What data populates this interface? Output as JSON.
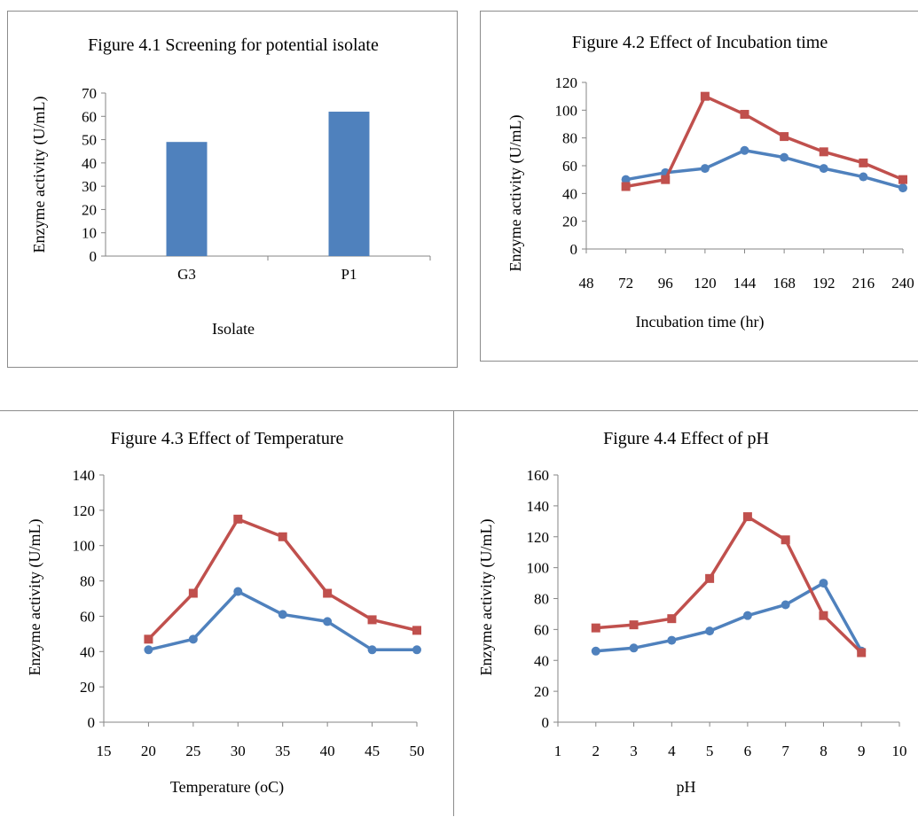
{
  "chart_data": [
    {
      "type": "bar",
      "title": "Figure 4.1 Screening for potential isolate",
      "xlabel": "Isolate",
      "ylabel": "Enzyme activity (U/mL)",
      "categories": [
        "G3",
        "P1"
      ],
      "values": [
        49,
        62
      ],
      "ylim": [
        0,
        70
      ],
      "yticks": [
        0,
        10,
        20,
        30,
        40,
        50,
        60,
        70
      ],
      "grid": false,
      "colors": {
        "bar": "#4f81bd"
      }
    },
    {
      "type": "line",
      "title": "Figure 4.2 Effect of Incubation time",
      "xlabel": "Incubation time (hr)",
      "ylabel": "Enzyme activity (U/mL)",
      "categories": [
        "48",
        "72",
        "96",
        "120",
        "144",
        "168",
        "192",
        "216",
        "240"
      ],
      "ylim": [
        0,
        120
      ],
      "yticks": [
        0,
        20,
        40,
        60,
        80,
        100,
        120
      ],
      "grid": false,
      "series": [
        {
          "color": "#4f81bd",
          "marker": "circle",
          "values": [
            null,
            50,
            55,
            58,
            71,
            66,
            58,
            52,
            44
          ]
        },
        {
          "color": "#c0504d",
          "marker": "square",
          "values": [
            null,
            45,
            50,
            110,
            97,
            81,
            70,
            62,
            50
          ]
        }
      ]
    },
    {
      "type": "line",
      "title": "Figure 4.3 Effect of Temperature",
      "xlabel": "Temperature (oC)",
      "ylabel": "Enzyme activity (U/mL)",
      "categories": [
        "15",
        "20",
        "25",
        "30",
        "35",
        "40",
        "45",
        "50"
      ],
      "ylim": [
        0,
        140
      ],
      "yticks": [
        0,
        20,
        40,
        60,
        80,
        100,
        120,
        140
      ],
      "grid": false,
      "series": [
        {
          "color": "#4f81bd",
          "marker": "circle",
          "values": [
            null,
            41,
            47,
            74,
            61,
            57,
            41,
            41
          ]
        },
        {
          "color": "#c0504d",
          "marker": "square",
          "values": [
            null,
            47,
            73,
            115,
            105,
            73,
            58,
            52
          ]
        }
      ]
    },
    {
      "type": "line",
      "title": "Figure 4.4 Effect of pH",
      "xlabel": "pH",
      "ylabel": "Enzyme activity (U/mL)",
      "categories": [
        "1",
        "2",
        "3",
        "4",
        "5",
        "6",
        "7",
        "8",
        "9",
        "10"
      ],
      "ylim": [
        0,
        160
      ],
      "yticks": [
        0,
        20,
        40,
        60,
        80,
        100,
        120,
        140,
        160
      ],
      "grid": false,
      "series": [
        {
          "color": "#4f81bd",
          "marker": "circle",
          "values": [
            null,
            46,
            48,
            53,
            59,
            69,
            76,
            90,
            46,
            null
          ]
        },
        {
          "color": "#c0504d",
          "marker": "square",
          "values": [
            null,
            61,
            63,
            67,
            93,
            133,
            118,
            69,
            45,
            null
          ]
        }
      ]
    }
  ]
}
